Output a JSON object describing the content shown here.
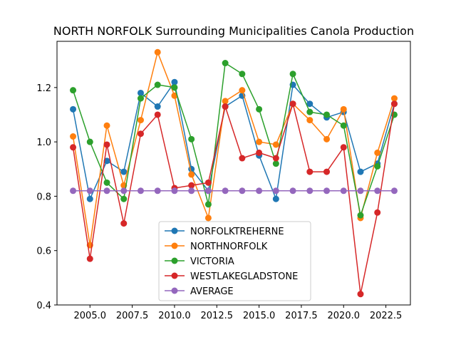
{
  "chart_data": {
    "type": "line",
    "title": "NORTH NORFOLK Surrounding Municipalities Canola Production",
    "xlabel": "",
    "ylabel": "",
    "xlim": [
      2003.05,
      2023.95
    ],
    "ylim": [
      0.4,
      1.37
    ],
    "xticks": [
      2005.0,
      2007.5,
      2010.0,
      2012.5,
      2015.0,
      2017.5,
      2020.0,
      2022.5
    ],
    "xtick_labels": [
      "2005.0",
      "2007.5",
      "2010.0",
      "2012.5",
      "2015.0",
      "2017.5",
      "2020.0",
      "2022.5"
    ],
    "yticks": [
      0.4,
      0.6,
      0.8,
      1.0,
      1.2
    ],
    "ytick_labels": [
      "0.4",
      "0.6",
      "0.8",
      "1.0",
      "1.2"
    ],
    "grid": false,
    "legend_position": "lower-center",
    "x": [
      2004,
      2005,
      2006,
      2007,
      2008,
      2009,
      2010,
      2011,
      2012,
      2013,
      2014,
      2015,
      2016,
      2017,
      2018,
      2019,
      2020,
      2021,
      2022,
      2023
    ],
    "series": [
      {
        "name": "NORFOLKTREHERNE",
        "color": "#1f77b4",
        "values": [
          1.12,
          0.79,
          0.93,
          0.89,
          1.18,
          1.13,
          1.22,
          0.9,
          0.82,
          1.13,
          1.17,
          0.95,
          0.79,
          1.21,
          1.14,
          1.09,
          1.11,
          0.89,
          0.92,
          1.14
        ]
      },
      {
        "name": "NORTHNORFOLK",
        "color": "#ff7f0e",
        "values": [
          1.02,
          0.62,
          1.06,
          0.84,
          1.08,
          1.33,
          1.17,
          0.88,
          0.72,
          1.15,
          1.19,
          1.0,
          0.99,
          1.14,
          1.08,
          1.01,
          1.12,
          0.72,
          0.96,
          1.16
        ]
      },
      {
        "name": "VICTORIA",
        "color": "#2ca02c",
        "values": [
          1.19,
          1.0,
          0.85,
          0.79,
          1.16,
          1.21,
          1.2,
          1.01,
          0.77,
          1.29,
          1.25,
          1.12,
          0.92,
          1.25,
          1.11,
          1.1,
          1.06,
          0.73,
          0.91,
          1.1
        ]
      },
      {
        "name": "WESTLAKEGLADSTONE",
        "color": "#d62728",
        "values": [
          0.98,
          0.57,
          0.99,
          0.7,
          1.03,
          1.1,
          0.83,
          0.84,
          0.85,
          1.13,
          0.94,
          0.96,
          0.94,
          1.14,
          0.89,
          0.89,
          0.98,
          0.44,
          0.74,
          1.14
        ]
      },
      {
        "name": "AVERAGE",
        "color": "#9467bd",
        "values": [
          0.82,
          0.82,
          0.82,
          0.82,
          0.82,
          0.82,
          0.82,
          0.82,
          0.82,
          0.82,
          0.82,
          0.82,
          0.82,
          0.82,
          0.82,
          0.82,
          0.82,
          0.82,
          0.82,
          0.82
        ]
      }
    ]
  }
}
